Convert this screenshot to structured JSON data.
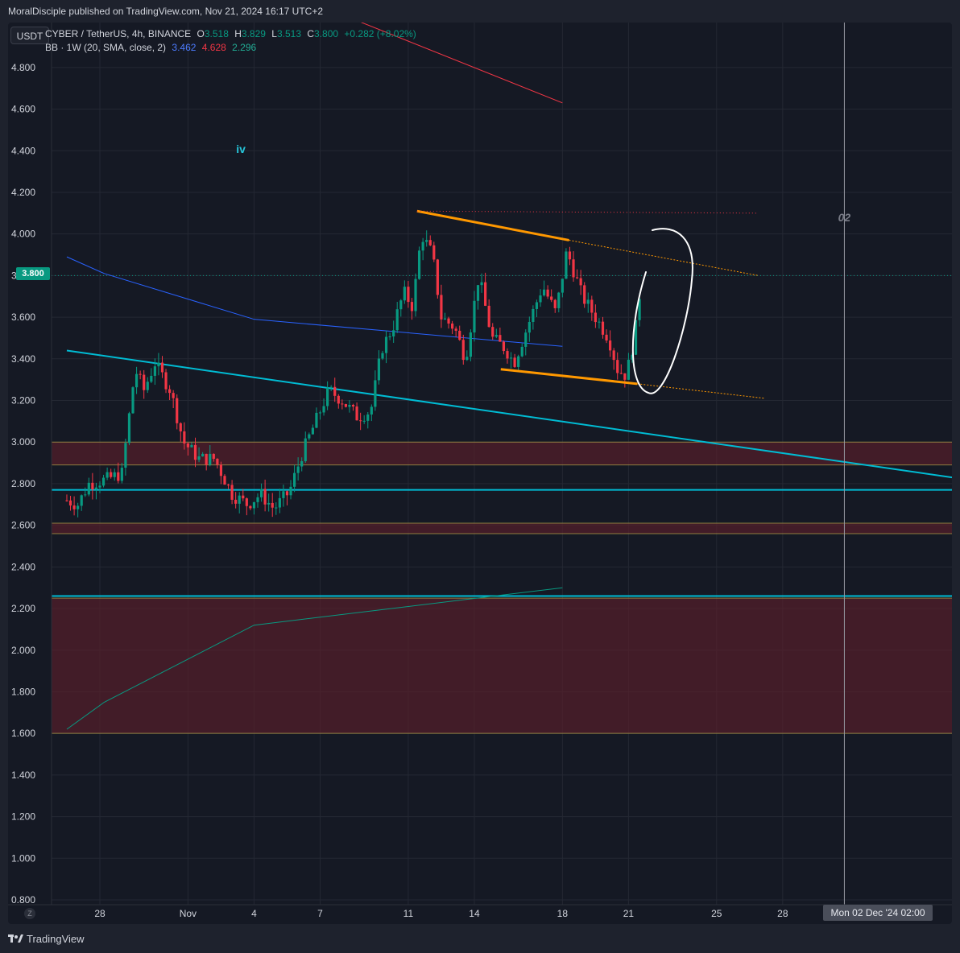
{
  "header": {
    "publisher": "MoralDisciple published on TradingView.com, Nov 21, 2024 16:17 UTC+2"
  },
  "legend": {
    "symbol": "CYBER / TetherUS, 4h, BINANCE",
    "o_label": "O",
    "o_value": "3.518",
    "h_label": "H",
    "h_value": "3.829",
    "l_label": "L",
    "l_value": "3.513",
    "c_label": "C",
    "c_value": "3.800",
    "change": "+0.282 (+8.02%)",
    "bb_label": "BB · 1W (20, SMA, close, 2)",
    "bb_basis": "3.462",
    "bb_upper": "4.628",
    "bb_lower": "2.296"
  },
  "currency": "USDT",
  "last_price": "3.800",
  "crosshair_date": "Mon 02 Dec '24   02:00",
  "zoom_label": "Z",
  "footer_brand": "TradingView",
  "colors": {
    "up": "#089981",
    "down": "#f23645",
    "bb_basis": "#2962ff",
    "bb_upper": "#f23645",
    "bb_lower": "#089981",
    "channel": "#ff9800",
    "trendline": "#00bcd4",
    "zone": "#5a1e2b"
  },
  "chart_data": {
    "type": "candlestick",
    "interval": "4h",
    "y_axis": {
      "ylim": [
        0.8,
        4.9
      ],
      "ticks": [
        "4.800",
        "4.600",
        "4.400",
        "4.200",
        "4.000",
        "3.800",
        "3.600",
        "3.400",
        "3.200",
        "3.000",
        "2.800",
        "2.600",
        "2.400",
        "2.200",
        "2.000",
        "1.800",
        "1.600",
        "1.400",
        "1.200",
        "1.000",
        "0.800"
      ]
    },
    "x_axis": {
      "ticks": [
        {
          "label": "28",
          "day": 28
        },
        {
          "label": "Nov",
          "day": 32
        },
        {
          "label": "4",
          "day": 35
        },
        {
          "label": "7",
          "day": 38
        },
        {
          "label": "11",
          "day": 42
        },
        {
          "label": "14",
          "day": 45
        },
        {
          "label": "18",
          "day": 49
        },
        {
          "label": "21",
          "day": 52
        },
        {
          "label": "25",
          "day": 56
        },
        {
          "label": "28",
          "day": 59
        }
      ]
    },
    "anchors": [
      {
        "day": 26.5,
        "price": 2.72
      },
      {
        "day": 27,
        "price": 2.7
      },
      {
        "day": 27.5,
        "price": 2.8
      },
      {
        "day": 28.3,
        "price": 2.82
      },
      {
        "day": 29,
        "price": 2.85
      },
      {
        "day": 29.6,
        "price": 3.35
      },
      {
        "day": 30,
        "price": 3.25
      },
      {
        "day": 30.5,
        "price": 3.38
      },
      {
        "day": 31.2,
        "price": 3.25
      },
      {
        "day": 31.8,
        "price": 3.0
      },
      {
        "day": 32.5,
        "price": 2.92
      },
      {
        "day": 33.2,
        "price": 2.92
      },
      {
        "day": 34,
        "price": 2.75
      },
      {
        "day": 34.7,
        "price": 2.7
      },
      {
        "day": 35.3,
        "price": 2.75
      },
      {
        "day": 35.9,
        "price": 2.68
      },
      {
        "day": 36.6,
        "price": 2.76
      },
      {
        "day": 37.2,
        "price": 2.95
      },
      {
        "day": 37.8,
        "price": 3.1
      },
      {
        "day": 38.4,
        "price": 3.25
      },
      {
        "day": 39,
        "price": 3.2
      },
      {
        "day": 39.7,
        "price": 3.12
      },
      {
        "day": 40.3,
        "price": 3.15
      },
      {
        "day": 40.8,
        "price": 3.45
      },
      {
        "day": 41.3,
        "price": 3.55
      },
      {
        "day": 41.8,
        "price": 3.72
      },
      {
        "day": 42.2,
        "price": 3.65
      },
      {
        "day": 42.6,
        "price": 4.0
      },
      {
        "day": 43.1,
        "price": 3.9
      },
      {
        "day": 43.5,
        "price": 3.6
      },
      {
        "day": 44.1,
        "price": 3.55
      },
      {
        "day": 44.6,
        "price": 3.4
      },
      {
        "day": 45.2,
        "price": 3.8
      },
      {
        "day": 45.8,
        "price": 3.5
      },
      {
        "day": 46.4,
        "price": 3.45
      },
      {
        "day": 46.8,
        "price": 3.38
      },
      {
        "day": 47.5,
        "price": 3.58
      },
      {
        "day": 48.1,
        "price": 3.75
      },
      {
        "day": 48.7,
        "price": 3.62
      },
      {
        "day": 49.2,
        "price": 3.92
      },
      {
        "day": 49.9,
        "price": 3.7
      },
      {
        "day": 50.5,
        "price": 3.6
      },
      {
        "day": 51.1,
        "price": 3.5
      },
      {
        "day": 51.5,
        "price": 3.35
      },
      {
        "day": 51.9,
        "price": 3.32
      },
      {
        "day": 52.3,
        "price": 3.52
      },
      {
        "day": 52.6,
        "price": 3.8
      }
    ],
    "bollinger": {
      "upper": [
        {
          "day": 37.2,
          "price": 5.13
        },
        {
          "day": 49,
          "price": 4.63
        }
      ],
      "basis": [
        {
          "day": 26.5,
          "price": 3.89
        },
        {
          "day": 28.2,
          "price": 3.81
        },
        {
          "day": 35,
          "price": 3.59
        },
        {
          "day": 49,
          "price": 3.46
        }
      ],
      "lower": [
        {
          "day": 26.5,
          "price": 1.62
        },
        {
          "day": 28.2,
          "price": 1.75
        },
        {
          "day": 35,
          "price": 2.12
        },
        {
          "day": 49,
          "price": 2.3
        }
      ]
    },
    "drawings": {
      "channel_top": [
        {
          "day": 42.4,
          "price": 4.11
        },
        {
          "day": 49.3,
          "price": 3.97
        }
      ],
      "channel_top_ext": [
        {
          "day": 49.3,
          "price": 3.97
        },
        {
          "day": 57.9,
          "price": 3.8
        }
      ],
      "channel_bottom": [
        {
          "day": 46.2,
          "price": 3.35
        },
        {
          "day": 52.4,
          "price": 3.28
        }
      ],
      "channel_bottom_ext": [
        {
          "day": 52.4,
          "price": 3.28
        },
        {
          "day": 58.2,
          "price": 3.21
        }
      ],
      "resistance_dotted": [
        {
          "day": 42.4,
          "price": 4.11
        },
        {
          "day": 57.8,
          "price": 4.1
        }
      ],
      "descending_trendline": [
        {
          "day": 26.5,
          "price": 3.44
        },
        {
          "day": 66.7,
          "price": 2.83
        }
      ],
      "horizontal_support": [
        {
          "price": 2.77
        },
        {
          "price": 2.26
        }
      ],
      "zones": [
        {
          "from": 2.89,
          "to": 3.0
        },
        {
          "from": 2.56,
          "to": 2.61
        },
        {
          "from": 1.6,
          "to": 2.25
        }
      ],
      "vertical_marker_day": 61.8
    },
    "annotations": [
      {
        "text": "iv",
        "day": 34.4,
        "price": 4.39
      },
      {
        "text": "02",
        "day": 61.8,
        "price": 4.06
      }
    ]
  }
}
